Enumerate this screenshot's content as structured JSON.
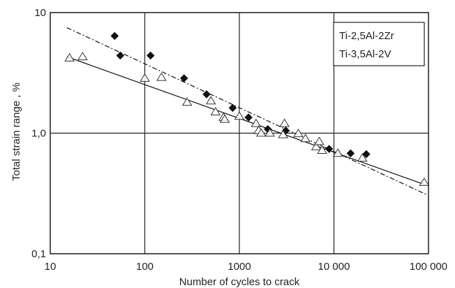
{
  "chart_data": {
    "type": "scatter",
    "x_scale": "log",
    "y_scale": "log",
    "xlim": [
      10,
      100000
    ],
    "ylim": [
      0.1,
      10
    ],
    "xlabel": "Number of cycles to crack",
    "ylabel": "Total strain range , %",
    "x_ticks": [
      {
        "value": 10,
        "label": "10"
      },
      {
        "value": 100,
        "label": "100"
      },
      {
        "value": 1000,
        "label": "1000"
      },
      {
        "value": 10000,
        "label": "10 000"
      },
      {
        "value": 100000,
        "label": "100 000"
      }
    ],
    "y_ticks": [
      {
        "value": 0.1,
        "label": "0,1"
      },
      {
        "value": 1,
        "label": "1,0"
      },
      {
        "value": 10,
        "label": "10"
      }
    ],
    "grid": true,
    "legend_position": "top-right",
    "series": [
      {
        "name": "Ti-2,5Al-2Zr",
        "marker": "filled-diamond",
        "line_style": "dash-dot",
        "fit_line": [
          [
            15,
            7.5
          ],
          [
            95000,
            0.31
          ]
        ],
        "points": [
          [
            48,
            6.4
          ],
          [
            55,
            4.4
          ],
          [
            115,
            4.4
          ],
          [
            260,
            2.85
          ],
          [
            450,
            2.1
          ],
          [
            850,
            1.62
          ],
          [
            1250,
            1.35
          ],
          [
            2000,
            1.08
          ],
          [
            3100,
            1.05
          ],
          [
            8900,
            0.74
          ],
          [
            15000,
            0.68
          ],
          [
            22000,
            0.67
          ]
        ]
      },
      {
        "name": "Ti-3,5Al-2V",
        "marker": "open-triangle",
        "line_style": "solid",
        "fit_line": [
          [
            15,
            4.3
          ],
          [
            95000,
            0.37
          ]
        ],
        "points": [
          [
            16,
            4.2
          ],
          [
            22,
            4.3
          ],
          [
            100,
            2.85
          ],
          [
            150,
            2.9
          ],
          [
            280,
            1.8
          ],
          [
            500,
            1.85
          ],
          [
            560,
            1.5
          ],
          [
            680,
            1.35
          ],
          [
            700,
            1.3
          ],
          [
            1000,
            1.38
          ],
          [
            1500,
            1.2
          ],
          [
            1600,
            1.05
          ],
          [
            1700,
            1.0
          ],
          [
            2100,
            1.0
          ],
          [
            2900,
            0.97
          ],
          [
            3000,
            1.2
          ],
          [
            4200,
            0.99
          ],
          [
            5000,
            0.9
          ],
          [
            6500,
            0.77
          ],
          [
            7000,
            0.85
          ],
          [
            7500,
            0.72
          ],
          [
            11000,
            0.68
          ],
          [
            20000,
            0.62
          ],
          [
            90000,
            0.39
          ]
        ]
      }
    ]
  }
}
